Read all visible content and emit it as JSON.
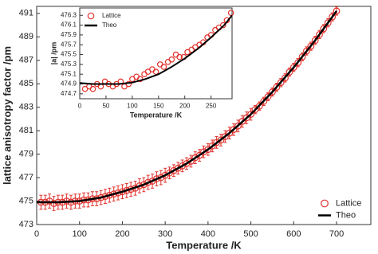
{
  "chart_data": [
    {
      "type": "scatter",
      "x_label": "Temperature /K",
      "y_label": "lattice anisotropy factor /pm",
      "xlim": [
        0,
        780
      ],
      "ylim": [
        473,
        491.6
      ],
      "xticks": [
        0,
        100,
        200,
        300,
        400,
        500,
        600,
        700
      ],
      "yticks": [
        473,
        475,
        477,
        479,
        481,
        483,
        485,
        487,
        489,
        491
      ],
      "legend": "lower right",
      "series": [
        {
          "name": "Lattice",
          "color": "#e0322d",
          "marker": "circle",
          "x": [
            10,
            20,
            30,
            40,
            50,
            60,
            70,
            80,
            90,
            100,
            110,
            120,
            130,
            140,
            150,
            160,
            170,
            180,
            190,
            200,
            210,
            220,
            230,
            240,
            250,
            260,
            270,
            280,
            290,
            300,
            310,
            320,
            330,
            340,
            350,
            360,
            370,
            380,
            390,
            400,
            410,
            420,
            430,
            440,
            450,
            460,
            470,
            480,
            490,
            500,
            510,
            520,
            530,
            540,
            550,
            560,
            570,
            580,
            590,
            600,
            610,
            620,
            630,
            640,
            650,
            660,
            670,
            680,
            690,
            700
          ],
          "values": [
            474.9,
            474.9,
            475.0,
            474.8,
            474.9,
            474.9,
            475.0,
            474.9,
            475.0,
            475.0,
            475.1,
            475.1,
            475.2,
            475.2,
            475.3,
            475.4,
            475.5,
            475.6,
            475.7,
            475.8,
            475.9,
            476.0,
            476.1,
            476.3,
            476.4,
            476.6,
            476.7,
            476.9,
            477.0,
            477.2,
            477.4,
            477.6,
            477.8,
            478.0,
            478.2,
            478.4,
            478.7,
            478.9,
            479.2,
            479.4,
            479.7,
            480.0,
            480.2,
            480.5,
            480.8,
            481.1,
            481.4,
            481.8,
            482.1,
            482.4,
            482.8,
            483.1,
            483.5,
            483.9,
            484.3,
            484.7,
            485.1,
            485.5,
            486.0,
            486.4,
            486.8,
            487.3,
            487.8,
            488.2,
            488.7,
            489.2,
            489.7,
            490.2,
            490.7,
            491.2
          ],
          "errors": [
            0.6,
            0.6,
            0.6,
            0.6,
            0.6,
            0.6,
            0.6,
            0.6,
            0.6,
            0.6,
            0.6,
            0.6,
            0.6,
            0.6,
            0.6,
            0.6,
            0.6,
            0.6,
            0.6,
            0.6,
            0.6,
            0.6,
            0.6,
            0.6,
            0.6,
            0.6,
            0.6,
            0.6,
            0.6,
            0.6,
            0.5,
            0.5,
            0.5,
            0.5,
            0.5,
            0.5,
            0.5,
            0.5,
            0.5,
            0.5,
            0.5,
            0.5,
            0.5,
            0.5,
            0.5,
            0.5,
            0.5,
            0.5,
            0.5,
            0.5,
            0.35,
            0.35,
            0.35,
            0.35,
            0.35,
            0.35,
            0.35,
            0.35,
            0.35,
            0.35,
            0.35,
            0.35,
            0.35,
            0.35,
            0.35,
            0.35,
            0.35,
            0.35,
            0.35,
            0.35
          ]
        },
        {
          "name": "Theo",
          "color": "#000000",
          "marker": "line",
          "x": [
            0,
            50,
            100,
            150,
            200,
            250,
            300,
            350,
            400,
            450,
            500,
            550,
            600,
            650,
            700
          ],
          "values": [
            474.9,
            474.9,
            475.0,
            475.3,
            475.8,
            476.4,
            477.2,
            478.2,
            479.4,
            480.8,
            482.4,
            484.3,
            486.4,
            488.7,
            491.2
          ]
        }
      ]
    },
    {
      "type": "scatter",
      "x_label": "Temperature /K",
      "y_label": "|a| /pm",
      "xlim": [
        0,
        290
      ],
      "ylim": [
        474.6,
        476.45
      ],
      "xticks": [
        0,
        50,
        100,
        150,
        200,
        250
      ],
      "yticks": [
        474.7,
        474.9,
        475.1,
        475.3,
        475.5,
        475.7,
        475.9,
        476.1,
        476.3
      ],
      "legend": "upper left",
      "series": [
        {
          "name": "Lattice",
          "color": "#e0322d",
          "marker": "circle",
          "x": [
            10,
            18,
            25,
            33,
            40,
            48,
            55,
            63,
            70,
            78,
            85,
            93,
            100,
            108,
            115,
            123,
            130,
            138,
            145,
            153,
            160,
            168,
            175,
            183,
            190,
            198,
            205,
            213,
            220,
            228,
            235,
            243,
            250,
            258,
            265,
            273,
            280,
            288
          ],
          "values": [
            474.8,
            474.85,
            474.8,
            474.9,
            474.85,
            474.95,
            474.9,
            474.85,
            474.9,
            474.95,
            474.85,
            474.9,
            475.0,
            475.05,
            475.0,
            475.1,
            475.15,
            475.2,
            475.15,
            475.3,
            475.25,
            475.35,
            475.4,
            475.5,
            475.45,
            475.45,
            475.55,
            475.6,
            475.65,
            475.7,
            475.75,
            475.85,
            475.9,
            476.0,
            476.05,
            476.1,
            476.2,
            476.35
          ]
        },
        {
          "name": "Theo",
          "color": "#000000",
          "marker": "line",
          "x": [
            0,
            25,
            50,
            75,
            100,
            125,
            150,
            175,
            200,
            225,
            250,
            275,
            290
          ],
          "values": [
            474.92,
            474.9,
            474.9,
            474.9,
            474.93,
            475.0,
            475.1,
            475.25,
            475.42,
            475.62,
            475.85,
            476.1,
            476.3
          ]
        }
      ]
    }
  ]
}
